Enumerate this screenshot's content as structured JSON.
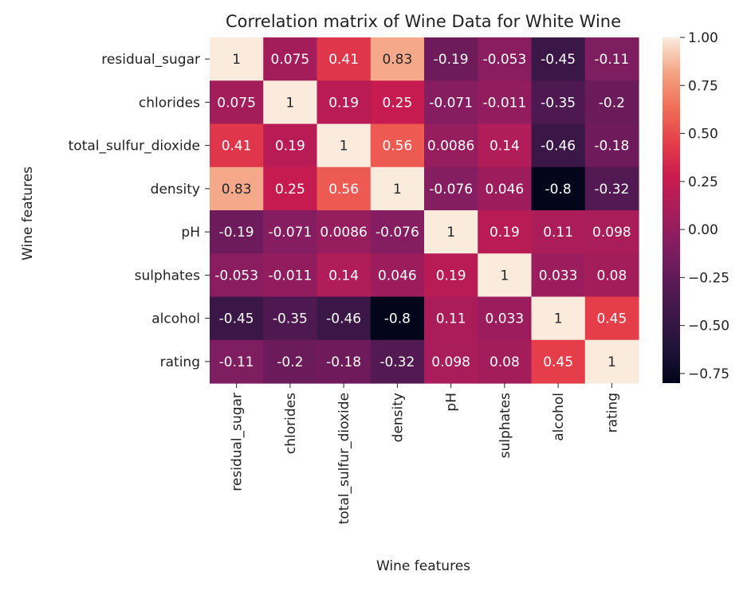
{
  "chart_data": {
    "type": "heatmap",
    "title": "Correlation matrix of Wine Data for White Wine",
    "xlabel": "Wine features",
    "ylabel": "Wine features",
    "x_categories": [
      "residual_sugar",
      "chlorides",
      "total_sulfur_dioxide",
      "density",
      "pH",
      "sulphates",
      "alcohol",
      "rating"
    ],
    "y_categories": [
      "residual_sugar",
      "chlorides",
      "total_sulfur_dioxide",
      "density",
      "pH",
      "sulphates",
      "alcohol",
      "rating"
    ],
    "values": [
      [
        1,
        0.075,
        0.41,
        0.83,
        -0.19,
        -0.053,
        -0.45,
        -0.11
      ],
      [
        0.075,
        1,
        0.19,
        0.25,
        -0.071,
        -0.011,
        -0.35,
        -0.2
      ],
      [
        0.41,
        0.19,
        1,
        0.56,
        0.0086,
        0.14,
        -0.46,
        -0.18
      ],
      [
        0.83,
        0.25,
        0.56,
        1,
        -0.076,
        0.046,
        -0.8,
        -0.32
      ],
      [
        -0.19,
        -0.071,
        0.0086,
        -0.076,
        1,
        0.19,
        0.11,
        0.098
      ],
      [
        -0.053,
        -0.011,
        0.14,
        0.046,
        0.19,
        1,
        0.033,
        0.08
      ],
      [
        -0.45,
        -0.35,
        -0.46,
        -0.8,
        0.11,
        0.033,
        1,
        0.45
      ],
      [
        -0.11,
        -0.2,
        -0.18,
        -0.32,
        0.098,
        0.08,
        0.45,
        1
      ]
    ],
    "cell_labels": [
      [
        "1",
        "0.075",
        "0.41",
        "0.83",
        "-0.19",
        "-0.053",
        "-0.45",
        "-0.11"
      ],
      [
        "0.075",
        "1",
        "0.19",
        "0.25",
        "-0.071",
        "-0.011",
        "-0.35",
        "-0.2"
      ],
      [
        "0.41",
        "0.19",
        "1",
        "0.56",
        "0.0086",
        "0.14",
        "-0.46",
        "-0.18"
      ],
      [
        "0.83",
        "0.25",
        "0.56",
        "1",
        "-0.076",
        "0.046",
        "-0.8",
        "-0.32"
      ],
      [
        "-0.19",
        "-0.071",
        "0.0086",
        "-0.076",
        "1",
        "0.19",
        "0.11",
        "0.098"
      ],
      [
        "-0.053",
        "-0.011",
        "0.14",
        "0.046",
        "0.19",
        "1",
        "0.033",
        "0.08"
      ],
      [
        "-0.45",
        "-0.35",
        "-0.46",
        "-0.8",
        "0.11",
        "0.033",
        "1",
        "0.45"
      ],
      [
        "-0.11",
        "-0.2",
        "-0.18",
        "-0.32",
        "0.098",
        "0.08",
        "0.45",
        "1"
      ]
    ],
    "colorbar": {
      "vmin": -0.8,
      "vmax": 1.0,
      "ticks": [
        1.0,
        0.75,
        0.5,
        0.25,
        0.0,
        -0.25,
        -0.5,
        -0.75
      ],
      "tick_labels": [
        "1.00",
        "0.75",
        "0.50",
        "0.25",
        "0.00",
        "−0.25",
        "−0.50",
        "−0.75"
      ]
    },
    "colormap": "rocket",
    "annotations": true
  }
}
